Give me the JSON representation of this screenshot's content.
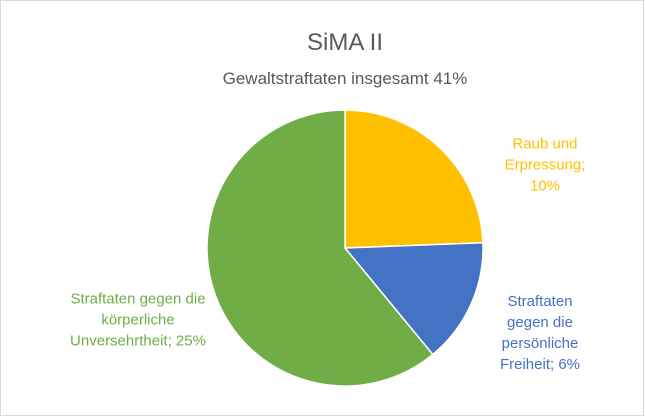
{
  "chart_data": {
    "type": "pie",
    "title": "SiMA II",
    "subtitle": "Gewaltstraftaten insgesamt 41%",
    "categories": [
      "Raub und Erpressung",
      "Straftaten gegen die persönliche Freiheit",
      "Straftaten gegen die körperliche Unversehrtheit"
    ],
    "values": [
      10,
      6,
      25
    ],
    "value_labels": [
      "Raub und Erpressung; 10%",
      "Straftaten gegen die persönliche Freiheit; 6%",
      "Straftaten gegen die körperliche Unversehrtheit; 25%"
    ],
    "colors": [
      "#FFC000",
      "#4472C4",
      "#70AD47"
    ]
  }
}
